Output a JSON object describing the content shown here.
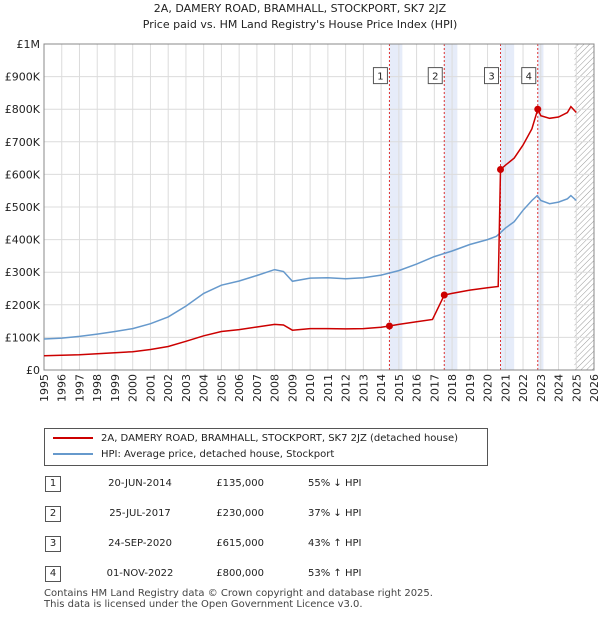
{
  "chart_data": {
    "type": "line",
    "title": "2A, DAMERY ROAD, BRAMHALL, STOCKPORT, SK7 2JZ",
    "subtitle": "Price paid vs. HM Land Registry's House Price Index (HPI)",
    "xlim": [
      1995,
      2026
    ],
    "ylim": [
      0,
      1000000
    ],
    "x_ticks": [
      "1995",
      "1996",
      "1997",
      "1998",
      "1999",
      "2000",
      "2001",
      "2002",
      "2003",
      "2004",
      "2005",
      "2006",
      "2007",
      "2008",
      "2009",
      "2010",
      "2011",
      "2012",
      "2013",
      "2014",
      "2015",
      "2016",
      "2017",
      "2018",
      "2019",
      "2020",
      "2021",
      "2022",
      "2023",
      "2024",
      "2025",
      "2026"
    ],
    "y_ticks": [
      {
        "value": 0,
        "label": "£0"
      },
      {
        "value": 100000,
        "label": "£100K"
      },
      {
        "value": 200000,
        "label": "£200K"
      },
      {
        "value": 300000,
        "label": "£300K"
      },
      {
        "value": 400000,
        "label": "£400K"
      },
      {
        "value": 500000,
        "label": "£500K"
      },
      {
        "value": 600000,
        "label": "£600K"
      },
      {
        "value": 700000,
        "label": "£700K"
      },
      {
        "value": 800000,
        "label": "£800K"
      },
      {
        "value": 900000,
        "label": "£900K"
      },
      {
        "value": 1000000,
        "label": "£1M"
      }
    ],
    "series": [
      {
        "name": "2A, DAMERY ROAD, BRAMHALL, STOCKPORT, SK7 2JZ (detached house)",
        "color": "#cc0000",
        "points": [
          [
            1995.0,
            44000
          ],
          [
            1996.0,
            45000
          ],
          [
            1997.0,
            47000
          ],
          [
            1998.0,
            50000
          ],
          [
            1999.0,
            53000
          ],
          [
            2000.0,
            56000
          ],
          [
            2001.0,
            63000
          ],
          [
            2002.0,
            72000
          ],
          [
            2003.0,
            88000
          ],
          [
            2004.0,
            105000
          ],
          [
            2005.0,
            118000
          ],
          [
            2006.0,
            124000
          ],
          [
            2007.0,
            132000
          ],
          [
            2008.0,
            140000
          ],
          [
            2008.5,
            138000
          ],
          [
            2009.0,
            122000
          ],
          [
            2010.0,
            127000
          ],
          [
            2011.0,
            127000
          ],
          [
            2012.0,
            126000
          ],
          [
            2013.0,
            127000
          ],
          [
            2014.0,
            131000
          ],
          [
            2014.47,
            135000
          ],
          [
            2015.0,
            140000
          ],
          [
            2016.0,
            148000
          ],
          [
            2016.9,
            155000
          ],
          [
            2017.56,
            230000
          ],
          [
            2018.0,
            235000
          ],
          [
            2019.0,
            245000
          ],
          [
            2020.0,
            252000
          ],
          [
            2020.6,
            256000
          ],
          [
            2020.73,
            615000
          ],
          [
            2021.0,
            628000
          ],
          [
            2021.5,
            650000
          ],
          [
            2022.0,
            690000
          ],
          [
            2022.5,
            740000
          ],
          [
            2022.83,
            800000
          ],
          [
            2023.0,
            780000
          ],
          [
            2023.5,
            772000
          ],
          [
            2024.0,
            776000
          ],
          [
            2024.5,
            790000
          ],
          [
            2024.7,
            808000
          ],
          [
            2025.0,
            790000
          ]
        ]
      },
      {
        "name": "HPI: Average price, detached house, Stockport",
        "color": "#6699cc",
        "points": [
          [
            1995.0,
            95000
          ],
          [
            1996.0,
            98000
          ],
          [
            1997.0,
            103000
          ],
          [
            1998.0,
            110000
          ],
          [
            1999.0,
            118000
          ],
          [
            2000.0,
            127000
          ],
          [
            2001.0,
            142000
          ],
          [
            2002.0,
            163000
          ],
          [
            2003.0,
            196000
          ],
          [
            2004.0,
            235000
          ],
          [
            2005.0,
            260000
          ],
          [
            2006.0,
            273000
          ],
          [
            2007.0,
            290000
          ],
          [
            2008.0,
            308000
          ],
          [
            2008.5,
            302000
          ],
          [
            2009.0,
            272000
          ],
          [
            2010.0,
            282000
          ],
          [
            2011.0,
            283000
          ],
          [
            2012.0,
            280000
          ],
          [
            2013.0,
            283000
          ],
          [
            2014.0,
            291000
          ],
          [
            2015.0,
            305000
          ],
          [
            2016.0,
            325000
          ],
          [
            2017.0,
            348000
          ],
          [
            2018.0,
            365000
          ],
          [
            2019.0,
            385000
          ],
          [
            2020.0,
            400000
          ],
          [
            2020.5,
            410000
          ],
          [
            2021.0,
            435000
          ],
          [
            2021.5,
            455000
          ],
          [
            2022.0,
            490000
          ],
          [
            2022.5,
            520000
          ],
          [
            2022.8,
            535000
          ],
          [
            2023.0,
            520000
          ],
          [
            2023.5,
            510000
          ],
          [
            2024.0,
            515000
          ],
          [
            2024.5,
            525000
          ],
          [
            2024.7,
            535000
          ],
          [
            2025.0,
            520000
          ]
        ]
      }
    ],
    "sale_shading": [
      [
        2014.47,
        2015.2
      ],
      [
        2017.56,
        2018.3
      ],
      [
        2020.73,
        2021.5
      ],
      [
        2022.83,
        2023.15
      ]
    ],
    "future_hatch_from": 2024.9,
    "markers": [
      {
        "label": "1",
        "x": 2014.47,
        "y": 135000
      },
      {
        "label": "2",
        "x": 2017.56,
        "y": 230000
      },
      {
        "label": "3",
        "x": 2020.73,
        "y": 615000
      },
      {
        "label": "4",
        "x": 2022.83,
        "y": 800000
      }
    ]
  },
  "legend": {
    "property_label": "2A, DAMERY ROAD, BRAMHALL, STOCKPORT, SK7 2JZ (detached house)",
    "hpi_label": "HPI: Average price, detached house, Stockport",
    "property_color": "#cc0000",
    "hpi_color": "#6699cc"
  },
  "sales": [
    {
      "num": "1",
      "date": "20-JUN-2014",
      "price": "£135,000",
      "hpi": "55% ↓ HPI"
    },
    {
      "num": "2",
      "date": "25-JUL-2017",
      "price": "£230,000",
      "hpi": "37% ↓ HPI"
    },
    {
      "num": "3",
      "date": "24-SEP-2020",
      "price": "£615,000",
      "hpi": "43% ↑ HPI"
    },
    {
      "num": "4",
      "date": "01-NOV-2022",
      "price": "£800,000",
      "hpi": "53% ↑ HPI"
    }
  ],
  "footer": {
    "line1": "Contains HM Land Registry data © Crown copyright and database right 2025.",
    "line2": "This data is licensed under the Open Government Licence v3.0."
  }
}
